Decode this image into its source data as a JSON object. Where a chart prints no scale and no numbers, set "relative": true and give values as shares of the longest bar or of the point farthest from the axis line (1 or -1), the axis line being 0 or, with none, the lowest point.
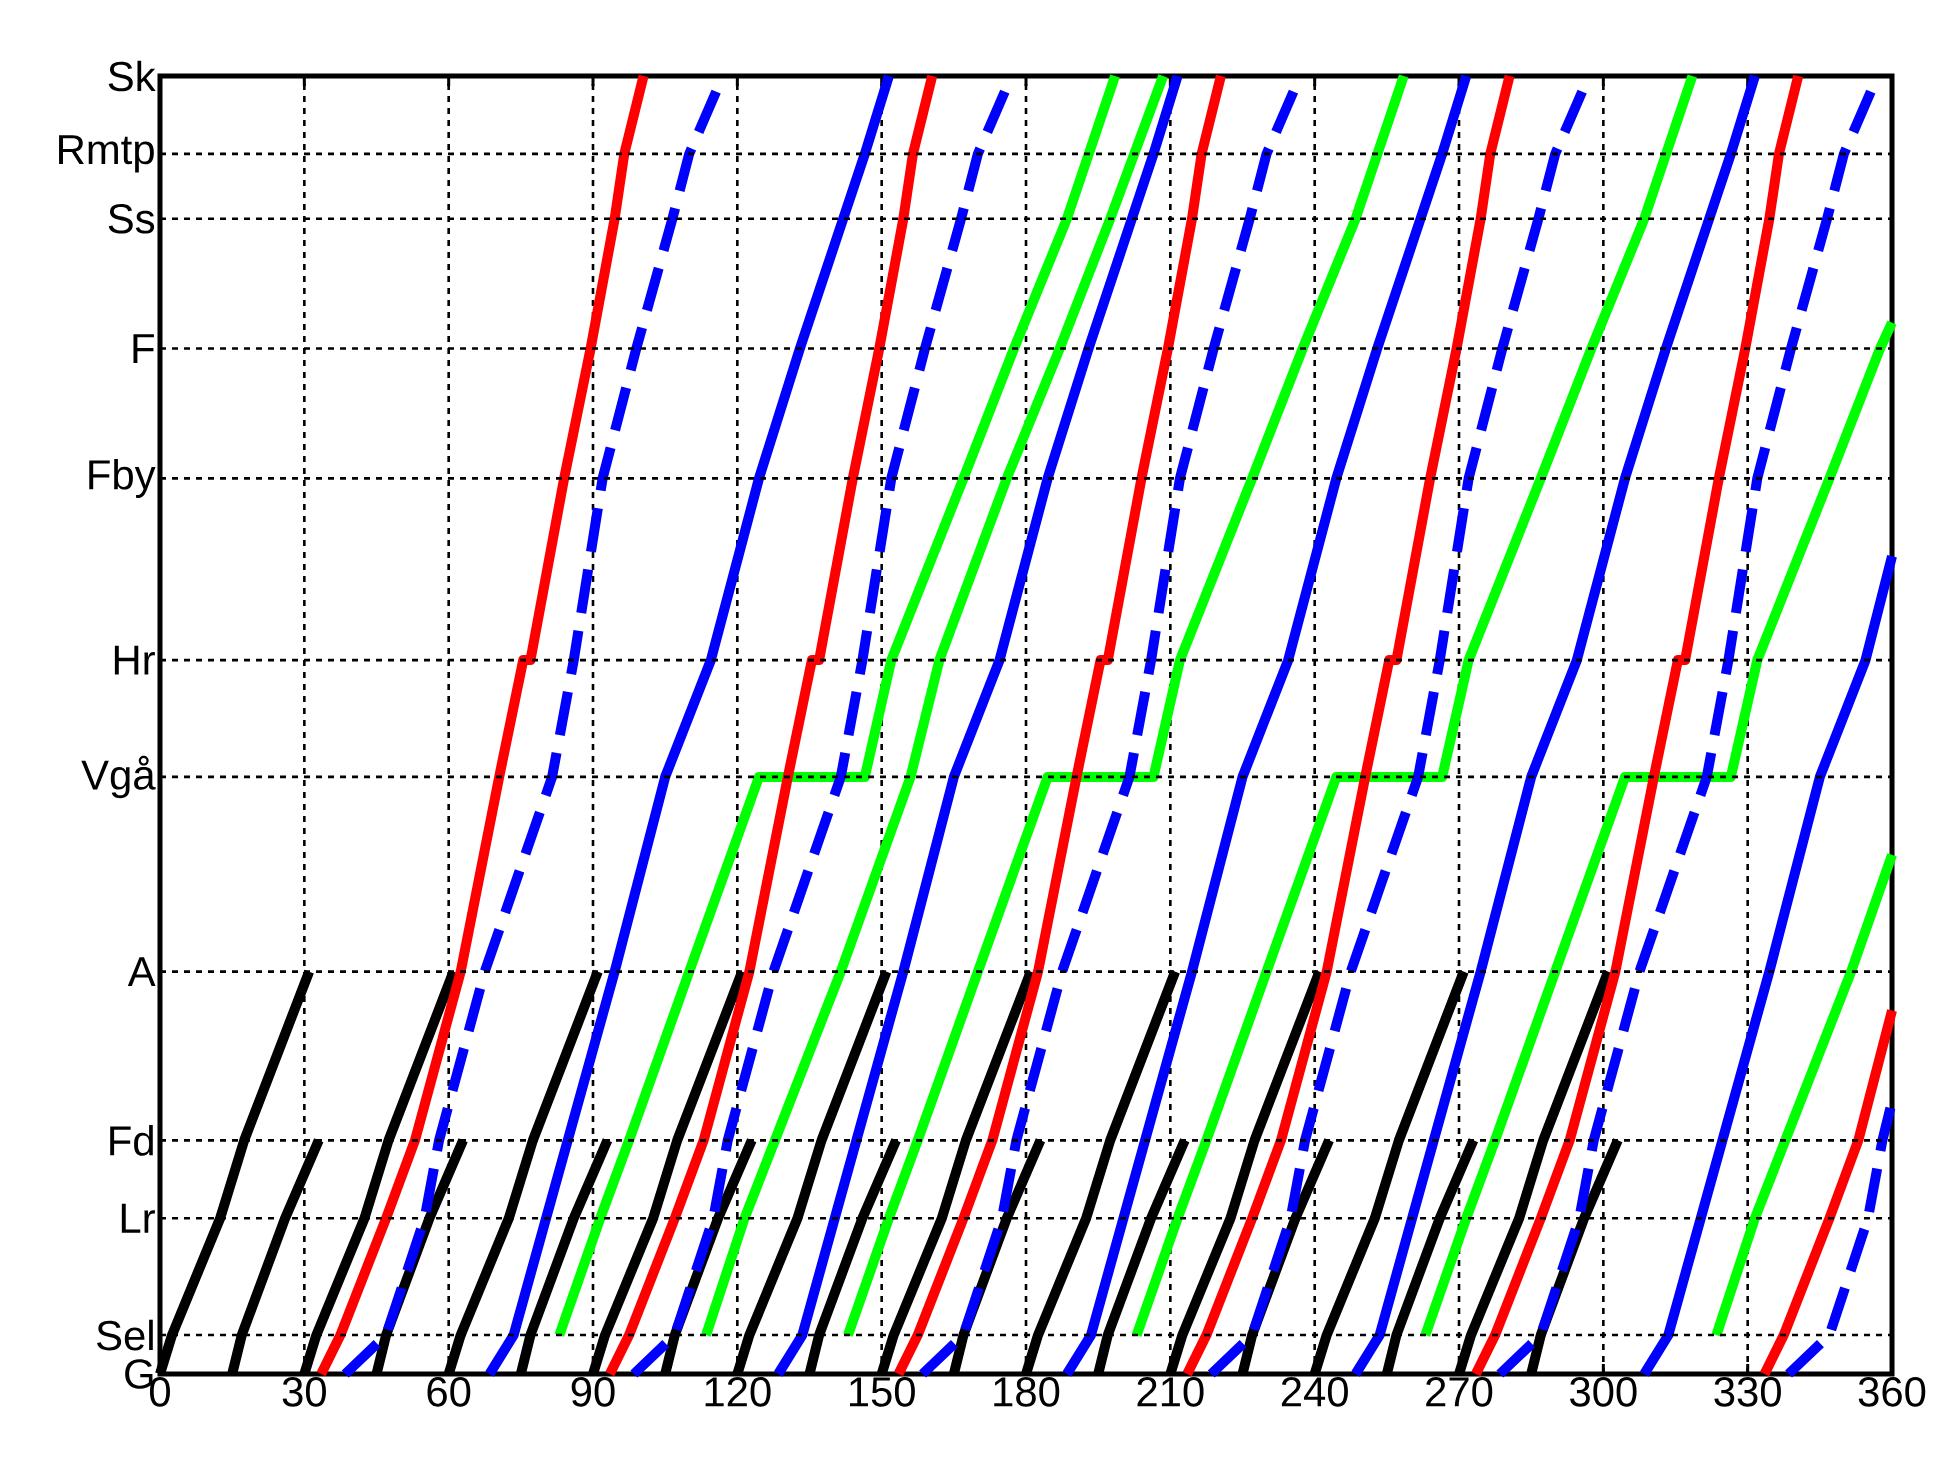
{
  "chart_data": {
    "type": "line",
    "grid": "x",
    "marker": "none",
    "relative": true,
    "xlim": [
      0,
      360
    ],
    "xticks": [
      0,
      30,
      60,
      90,
      120,
      150,
      180,
      210,
      240,
      270,
      300,
      330,
      360
    ],
    "annotations": [
      {
        "text": "G",
        "x": 0,
        "y": 0
      },
      "Sk"
    ],
    "ref_lines": [
      {
        "axis": "y",
        "value": 0.03,
        "label": "Sel",
        "color": "#000000",
        "line_style": "dotted"
      },
      {
        "axis": "y",
        "value": 0.12,
        "label": "Lr",
        "color": "#000000",
        "line_style": "dotted"
      },
      {
        "axis": "y",
        "value": 0.18,
        "label": "Fd",
        "color": "#000000",
        "line_style": "dotted"
      },
      {
        "axis": "y",
        "value": 0.31,
        "label": "A",
        "color": "#000000",
        "line_style": "dotted"
      },
      {
        "axis": "y",
        "value": 0.46,
        "label": "Vgå",
        "color": "#000000",
        "line_style": "dotted"
      },
      {
        "axis": "y",
        "value": 0.55,
        "label": "Hr",
        "color": "#000000",
        "line_style": "dotted"
      },
      {
        "axis": "y",
        "value": 0.69,
        "label": "Fby",
        "color": "#000000",
        "line_style": "dotted"
      },
      {
        "axis": "y",
        "value": 0.79,
        "label": "F",
        "color": "#000000",
        "line_style": "dotted"
      },
      {
        "axis": "y",
        "value": 0.89,
        "label": "Ss",
        "color": "#000000",
        "line_style": "dotted"
      },
      {
        "axis": "y",
        "value": 0.94,
        "label": "Rmtp",
        "color": "#000000",
        "line_style": "dotted"
      }
    ],
    "series": [
      {
        "color": "#000000",
        "x": [
          0,
          2.5,
          12.5,
          17.5,
          31
        ],
        "values": [
          0,
          0.03,
          0.12,
          0.18,
          0.31
        ]
      },
      {
        "color": "#000000",
        "x": [
          30,
          32.5,
          42.5,
          47.5,
          61
        ],
        "values": [
          0,
          0.03,
          0.12,
          0.18,
          0.31
        ]
      },
      {
        "color": "#000000",
        "x": [
          60,
          62.5,
          72.5,
          77.5,
          91
        ],
        "values": [
          0,
          0.03,
          0.12,
          0.18,
          0.31
        ]
      },
      {
        "color": "#000000",
        "x": [
          90,
          92.5,
          102.5,
          107.5,
          121
        ],
        "values": [
          0,
          0.03,
          0.12,
          0.18,
          0.31
        ]
      },
      {
        "color": "#000000",
        "x": [
          120,
          122.5,
          132.5,
          137.5,
          151
        ],
        "values": [
          0,
          0.03,
          0.12,
          0.18,
          0.31
        ]
      },
      {
        "color": "#000000",
        "x": [
          150,
          152.5,
          162.5,
          167.5,
          181
        ],
        "values": [
          0,
          0.03,
          0.12,
          0.18,
          0.31
        ]
      },
      {
        "color": "#000000",
        "x": [
          180,
          182.5,
          192.5,
          197.5,
          211
        ],
        "values": [
          0,
          0.03,
          0.12,
          0.18,
          0.31
        ]
      },
      {
        "color": "#000000",
        "x": [
          210,
          212.5,
          222.5,
          227.5,
          241
        ],
        "values": [
          0,
          0.03,
          0.12,
          0.18,
          0.31
        ]
      },
      {
        "color": "#000000",
        "x": [
          240,
          242.5,
          252.5,
          257.5,
          271
        ],
        "values": [
          0,
          0.03,
          0.12,
          0.18,
          0.31
        ]
      },
      {
        "color": "#000000",
        "x": [
          270,
          272.5,
          282.5,
          287.5,
          301
        ],
        "values": [
          0,
          0.03,
          0.12,
          0.18,
          0.31
        ]
      },
      {
        "color": "#000000",
        "x": [
          15,
          17,
          26,
          33
        ],
        "values": [
          0,
          0.03,
          0.12,
          0.18
        ]
      },
      {
        "color": "#000000",
        "x": [
          45,
          47,
          56,
          63
        ],
        "values": [
          0,
          0.03,
          0.12,
          0.18
        ]
      },
      {
        "color": "#000000",
        "x": [
          75,
          77,
          86,
          93
        ],
        "values": [
          0,
          0.03,
          0.12,
          0.18
        ]
      },
      {
        "color": "#000000",
        "x": [
          105,
          107,
          116,
          123
        ],
        "values": [
          0,
          0.03,
          0.12,
          0.18
        ]
      },
      {
        "color": "#000000",
        "x": [
          135,
          137,
          146,
          153
        ],
        "values": [
          0,
          0.03,
          0.12,
          0.18
        ]
      },
      {
        "color": "#000000",
        "x": [
          165,
          167,
          176,
          183
        ],
        "values": [
          0,
          0.03,
          0.12,
          0.18
        ]
      },
      {
        "color": "#000000",
        "x": [
          195,
          197,
          206,
          213
        ],
        "values": [
          0,
          0.03,
          0.12,
          0.18
        ]
      },
      {
        "color": "#000000",
        "x": [
          225,
          227,
          236,
          243
        ],
        "values": [
          0,
          0.03,
          0.12,
          0.18
        ]
      },
      {
        "color": "#000000",
        "x": [
          255,
          257,
          266,
          273
        ],
        "values": [
          0,
          0.03,
          0.12,
          0.18
        ]
      },
      {
        "color": "#000000",
        "x": [
          285,
          287,
          296,
          303
        ],
        "values": [
          0,
          0.03,
          0.12,
          0.18
        ]
      },
      {
        "color": "#00ff00",
        "x": [
          83,
          91.5,
          97.5,
          110,
          124.5,
          146.5,
          152,
          167,
          177.5,
          188.5,
          198.5
        ],
        "values": [
          0.03,
          0.12,
          0.18,
          0.31,
          0.46,
          0.46,
          0.55,
          0.69,
          0.79,
          0.89,
          1
        ]
      },
      {
        "color": "#00ff00",
        "x": [
          143,
          151.5,
          157.5,
          170,
          184.5,
          206.5,
          212,
          227,
          237.5,
          248.5,
          258.5
        ],
        "values": [
          0.03,
          0.12,
          0.18,
          0.31,
          0.46,
          0.46,
          0.55,
          0.69,
          0.79,
          0.89,
          1
        ]
      },
      {
        "color": "#00ff00",
        "x": [
          203,
          211.5,
          217.5,
          230,
          244.5,
          266.5,
          272,
          287,
          297.5,
          308.5,
          318.5
        ],
        "values": [
          0.03,
          0.12,
          0.18,
          0.31,
          0.46,
          0.46,
          0.55,
          0.69,
          0.79,
          0.89,
          1
        ]
      },
      {
        "color": "#00ff00",
        "x": [
          263,
          271.5,
          277.5,
          290,
          304.5,
          326.5,
          332,
          347,
          357.5,
          360
        ],
        "values": [
          0.03,
          0.12,
          0.18,
          0.31,
          0.46,
          0.46,
          0.55,
          0.69,
          0.79,
          0.81
        ]
      },
      {
        "color": "#00ff00",
        "x": [
          113.5,
          121.5,
          141.5,
          156,
          162,
          176,
          187,
          197.5,
          208.5
        ],
        "values": [
          0.03,
          0.12,
          0.31,
          0.46,
          0.55,
          0.69,
          0.79,
          0.89,
          1
        ]
      },
      {
        "color": "#00ff00",
        "x": [
          323.5,
          331.5,
          351.5,
          360
        ],
        "values": [
          0.03,
          0.12,
          0.31,
          0.4
        ]
      },
      {
        "color": "#0000ff",
        "x": [
          68.5,
          73.5,
          94.5,
          105,
          114.5,
          124.5,
          133,
          142,
          146.5,
          151.5
        ],
        "values": [
          0,
          0.03,
          0.31,
          0.46,
          0.55,
          0.69,
          0.79,
          0.89,
          0.94,
          1
        ]
      },
      {
        "color": "#0000ff",
        "x": [
          128.5,
          133.5,
          154.5,
          165,
          174.5,
          184.5,
          193,
          202,
          206.5,
          211.5
        ],
        "values": [
          0,
          0.03,
          0.31,
          0.46,
          0.55,
          0.69,
          0.79,
          0.89,
          0.94,
          1
        ]
      },
      {
        "color": "#0000ff",
        "x": [
          188.5,
          193.5,
          214.5,
          225,
          234.5,
          244.5,
          253,
          262,
          266.5,
          271.5
        ],
        "values": [
          0,
          0.03,
          0.31,
          0.46,
          0.55,
          0.69,
          0.79,
          0.89,
          0.94,
          1
        ]
      },
      {
        "color": "#0000ff",
        "x": [
          248.5,
          253.5,
          274.5,
          285,
          294.5,
          304.5,
          313,
          322,
          326.5,
          331.5
        ],
        "values": [
          0,
          0.03,
          0.31,
          0.46,
          0.55,
          0.69,
          0.79,
          0.89,
          0.94,
          1
        ]
      },
      {
        "color": "#0000ff",
        "x": [
          308.5,
          313.5,
          334.5,
          345,
          354.5,
          360
        ],
        "values": [
          0,
          0.03,
          0.31,
          0.46,
          0.55,
          0.63
        ]
      },
      {
        "color": "#0000ff",
        "line_style": "dashed",
        "x": [
          38.5,
          47,
          55,
          58,
          67.5,
          81.5,
          86,
          92,
          99,
          106.5,
          110,
          117
        ],
        "values": [
          0,
          0.03,
          0.12,
          0.18,
          0.31,
          0.46,
          0.55,
          0.69,
          0.79,
          0.89,
          0.94,
          1
        ]
      },
      {
        "color": "#0000ff",
        "line_style": "dashed",
        "x": [
          98.5,
          107,
          115,
          118,
          127.5,
          141.5,
          146,
          152,
          159,
          166.5,
          170,
          177
        ],
        "values": [
          0,
          0.03,
          0.12,
          0.18,
          0.31,
          0.46,
          0.55,
          0.69,
          0.79,
          0.89,
          0.94,
          1
        ]
      },
      {
        "color": "#0000ff",
        "line_style": "dashed",
        "x": [
          158.5,
          167,
          175,
          178,
          187.5,
          201.5,
          206,
          212,
          219,
          226.5,
          230,
          237
        ],
        "values": [
          0,
          0.03,
          0.12,
          0.18,
          0.31,
          0.46,
          0.55,
          0.69,
          0.79,
          0.89,
          0.94,
          1
        ]
      },
      {
        "color": "#0000ff",
        "line_style": "dashed",
        "x": [
          218.5,
          227,
          235,
          238,
          247.5,
          261.5,
          266,
          272,
          279,
          286.5,
          290,
          297
        ],
        "values": [
          0,
          0.03,
          0.12,
          0.18,
          0.31,
          0.46,
          0.55,
          0.69,
          0.79,
          0.89,
          0.94,
          1
        ]
      },
      {
        "color": "#0000ff",
        "line_style": "dashed",
        "x": [
          278.5,
          287,
          295,
          298,
          307.5,
          321.5,
          326,
          332,
          339,
          346.5,
          350,
          357
        ],
        "values": [
          0,
          0.03,
          0.12,
          0.18,
          0.31,
          0.46,
          0.55,
          0.69,
          0.79,
          0.89,
          0.94,
          1
        ]
      },
      {
        "color": "#0000ff",
        "line_style": "dashed",
        "x": [
          338.5,
          347,
          355,
          358,
          360
        ],
        "values": [
          0,
          0.03,
          0.12,
          0.18,
          0.21
        ]
      },
      {
        "color": "#ff0000",
        "x": [
          33.5,
          37.5,
          47,
          53,
          62.5,
          70.5,
          75.5,
          77,
          84,
          89.5,
          94.5,
          96.5,
          100.5
        ],
        "values": [
          0,
          0.03,
          0.12,
          0.18,
          0.31,
          0.46,
          0.55,
          0.55,
          0.69,
          0.79,
          0.89,
          0.94,
          1
        ]
      },
      {
        "color": "#ff0000",
        "x": [
          93.5,
          97.5,
          107,
          113,
          122.5,
          130.5,
          135.5,
          137,
          144,
          149.5,
          154.5,
          156.5,
          160.5
        ],
        "values": [
          0,
          0.03,
          0.12,
          0.18,
          0.31,
          0.46,
          0.55,
          0.55,
          0.69,
          0.79,
          0.89,
          0.94,
          1
        ]
      },
      {
        "color": "#ff0000",
        "x": [
          153.5,
          157.5,
          167,
          173,
          182.5,
          190.5,
          195.5,
          197,
          204,
          209.5,
          214.5,
          216.5,
          220.5
        ],
        "values": [
          0,
          0.03,
          0.12,
          0.18,
          0.31,
          0.46,
          0.55,
          0.55,
          0.69,
          0.79,
          0.89,
          0.94,
          1
        ]
      },
      {
        "color": "#ff0000",
        "x": [
          213.5,
          217.5,
          227,
          233,
          242.5,
          250.5,
          255.5,
          257,
          264,
          269.5,
          274.5,
          276.5,
          280.5
        ],
        "values": [
          0,
          0.03,
          0.12,
          0.18,
          0.31,
          0.46,
          0.55,
          0.55,
          0.69,
          0.79,
          0.89,
          0.94,
          1
        ]
      },
      {
        "color": "#ff0000",
        "x": [
          273.5,
          277.5,
          287,
          293,
          302.5,
          310.5,
          315.5,
          317,
          324,
          329.5,
          334.5,
          336.5,
          340.5
        ],
        "values": [
          0,
          0.03,
          0.12,
          0.18,
          0.31,
          0.46,
          0.55,
          0.55,
          0.69,
          0.79,
          0.89,
          0.94,
          1
        ]
      },
      {
        "color": "#ff0000",
        "x": [
          333.5,
          337.5,
          347,
          353,
          360
        ],
        "values": [
          0,
          0.03,
          0.12,
          0.18,
          0.28
        ]
      }
    ]
  }
}
